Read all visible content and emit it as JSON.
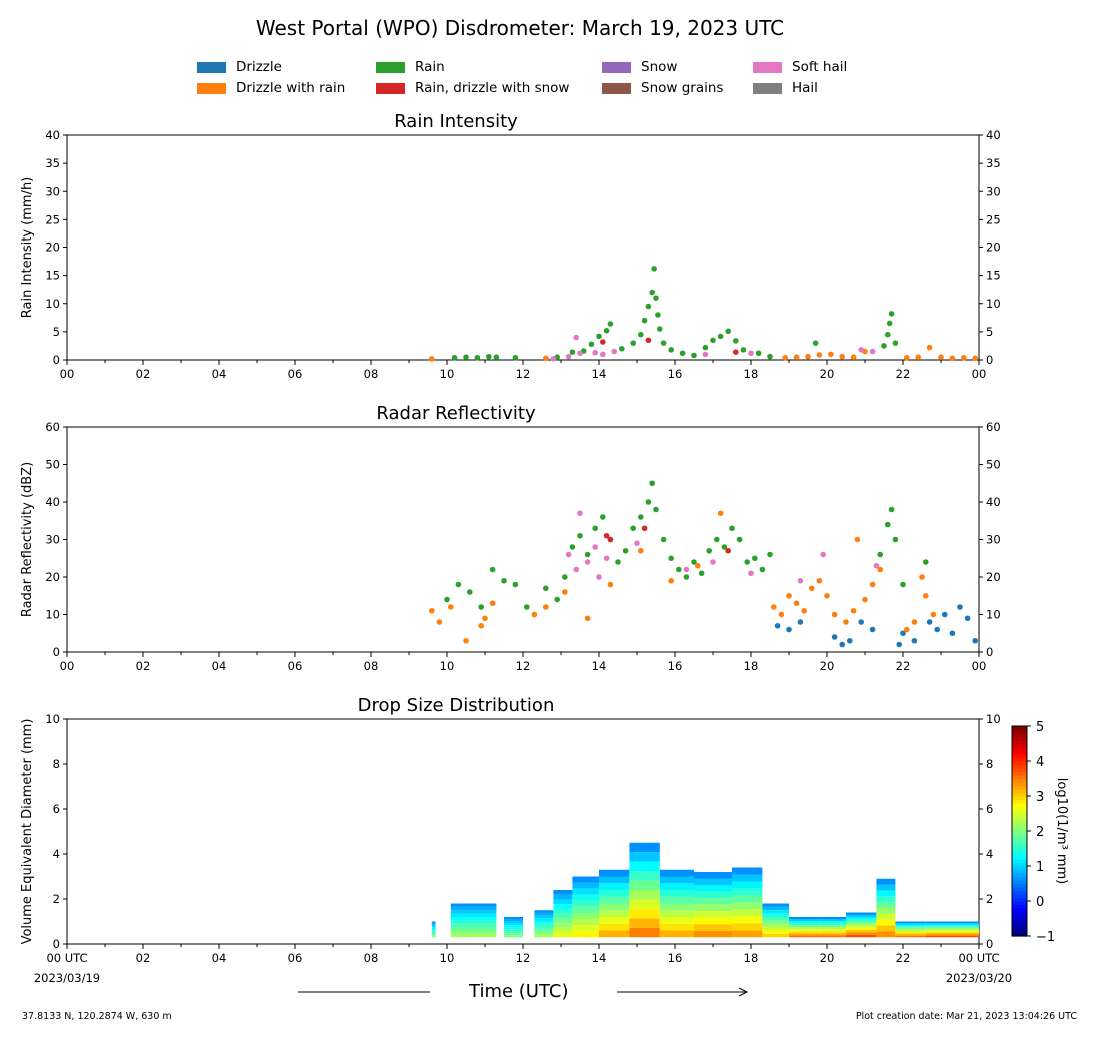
{
  "title": "West Portal (WPO) Disdrometer: March 19, 2023 UTC",
  "legend": [
    {
      "label": "Drizzle",
      "color": "#1f77b4"
    },
    {
      "label": "Drizzle with rain",
      "color": "#ff7f0e"
    },
    {
      "label": "Rain",
      "color": "#2ca02c"
    },
    {
      "label": "Rain, drizzle with snow",
      "color": "#d62728"
    },
    {
      "label": "Snow",
      "color": "#9467bd"
    },
    {
      "label": "Snow grains",
      "color": "#8c564b"
    },
    {
      "label": "Soft hail",
      "color": "#e377c2"
    },
    {
      "label": "Hail",
      "color": "#7f7f7f"
    }
  ],
  "footer": {
    "location": "37.8133 N, 120.2874 W, 630 m",
    "created": "Plot creation date: Mar 21, 2023 13:04:26 UTC",
    "xlabel": "Time (UTC)"
  },
  "chart_data": [
    {
      "type": "scatter",
      "title": "Rain Intensity",
      "ylabel": "Rain Intensity (mm/h)",
      "xlim": [
        0,
        24
      ],
      "ylim": [
        0,
        40
      ],
      "yticks": [
        0,
        5,
        10,
        15,
        20,
        25,
        30,
        35,
        40
      ],
      "xtick_labels": [
        "00",
        "02",
        "04",
        "06",
        "08",
        "10",
        "12",
        "14",
        "16",
        "18",
        "20",
        "22",
        "00"
      ],
      "series": [
        {
          "name": "Drizzle with rain",
          "color": "#ff7f0e",
          "x": [
            9.6,
            12.6,
            18.9,
            19.2,
            19.5,
            19.8,
            20.1,
            20.4,
            20.7,
            21.0,
            22.1,
            22.4,
            22.7,
            23.0,
            23.3,
            23.6,
            23.9
          ],
          "y": [
            0.2,
            0.3,
            0.4,
            0.5,
            0.6,
            0.9,
            1.0,
            0.6,
            0.5,
            1.5,
            0.4,
            0.5,
            2.2,
            0.5,
            0.3,
            0.4,
            0.3
          ]
        },
        {
          "name": "Rain",
          "color": "#2ca02c",
          "x": [
            10.2,
            10.5,
            10.8,
            11.1,
            11.3,
            11.8,
            12.9,
            13.3,
            13.6,
            13.8,
            14.0,
            14.2,
            14.3,
            14.6,
            14.9,
            15.1,
            15.2,
            15.3,
            15.4,
            15.45,
            15.5,
            15.55,
            15.6,
            15.7,
            15.9,
            16.2,
            16.5,
            16.8,
            17.0,
            17.2,
            17.4,
            17.6,
            17.8,
            18.2,
            18.5,
            19.7,
            21.5,
            21.6,
            21.65,
            21.7,
            21.8
          ],
          "y": [
            0.4,
            0.5,
            0.4,
            0.6,
            0.5,
            0.4,
            0.5,
            1.4,
            1.6,
            2.8,
            4.2,
            5.2,
            6.4,
            2.0,
            3.0,
            4.5,
            7.0,
            9.5,
            12.0,
            16.2,
            11.0,
            8.0,
            5.5,
            3.0,
            1.8,
            1.2,
            0.8,
            2.2,
            3.5,
            4.2,
            5.1,
            3.4,
            1.8,
            1.2,
            0.6,
            3.0,
            2.5,
            4.5,
            6.5,
            8.2,
            3.0
          ]
        },
        {
          "name": "Rain, drizzle with snow",
          "color": "#d62728",
          "x": [
            14.1,
            15.3,
            17.6
          ],
          "y": [
            3.2,
            3.5,
            1.4
          ]
        },
        {
          "name": "Soft hail",
          "color": "#e377c2",
          "x": [
            12.8,
            13.2,
            13.4,
            13.5,
            13.9,
            14.1,
            14.4,
            16.8,
            18.0,
            20.9,
            21.2
          ],
          "y": [
            0.2,
            0.6,
            4.0,
            1.2,
            1.3,
            1.0,
            1.5,
            1.0,
            1.2,
            1.8,
            1.5
          ]
        }
      ]
    },
    {
      "type": "scatter",
      "title": "Radar Reflectivity",
      "ylabel": "Radar Reflectivity (dBZ)",
      "xlim": [
        0,
        24
      ],
      "ylim": [
        0,
        60
      ],
      "yticks": [
        0,
        10,
        20,
        30,
        40,
        50,
        60
      ],
      "xtick_labels": [
        "00",
        "02",
        "04",
        "06",
        "08",
        "10",
        "12",
        "14",
        "16",
        "18",
        "20",
        "22",
        "00"
      ],
      "series": [
        {
          "name": "Drizzle",
          "color": "#1f77b4",
          "x": [
            18.7,
            19.0,
            19.3,
            20.2,
            20.4,
            20.6,
            20.9,
            21.2,
            21.9,
            22.0,
            22.3,
            22.7,
            22.9,
            23.1,
            23.3,
            23.5,
            23.7,
            23.9
          ],
          "y": [
            7.0,
            6.0,
            8.0,
            4.0,
            2.0,
            3.0,
            8.0,
            6.0,
            2.0,
            5.0,
            3.0,
            8.0,
            6.0,
            10.0,
            5.0,
            12.0,
            9.0,
            3.0
          ]
        },
        {
          "name": "Drizzle with rain",
          "color": "#ff7f0e",
          "x": [
            9.6,
            9.8,
            10.1,
            10.5,
            10.9,
            11.0,
            11.2,
            12.3,
            12.6,
            13.1,
            13.7,
            14.3,
            15.1,
            15.9,
            16.6,
            17.2,
            18.6,
            18.8,
            19.0,
            19.2,
            19.4,
            19.6,
            19.8,
            20.0,
            20.2,
            20.5,
            20.7,
            20.8,
            21.0,
            21.2,
            21.4,
            22.1,
            22.3,
            22.5,
            22.6,
            22.8
          ],
          "y": [
            11,
            8,
            12,
            3,
            7,
            9,
            13,
            10,
            12,
            16,
            9,
            18,
            27,
            19,
            23,
            37,
            12,
            10,
            15,
            13,
            11,
            17,
            19,
            15,
            10,
            8,
            11,
            30,
            14,
            18,
            22,
            6,
            8,
            20,
            15,
            10
          ]
        },
        {
          "name": "Rain",
          "color": "#2ca02c",
          "x": [
            10.0,
            10.3,
            10.6,
            10.9,
            11.2,
            11.5,
            11.8,
            12.1,
            12.6,
            12.9,
            13.1,
            13.3,
            13.5,
            13.7,
            13.9,
            14.1,
            14.3,
            14.5,
            14.7,
            14.9,
            15.1,
            15.3,
            15.4,
            15.5,
            15.7,
            15.9,
            16.1,
            16.3,
            16.5,
            16.7,
            16.9,
            17.1,
            17.3,
            17.5,
            17.7,
            17.9,
            18.1,
            18.3,
            18.5,
            21.4,
            21.6,
            21.7,
            21.8,
            22.0,
            22.6
          ],
          "y": [
            14,
            18,
            16,
            12,
            22,
            19,
            18,
            12,
            17,
            14,
            20,
            28,
            31,
            26,
            33,
            36,
            30,
            24,
            27,
            33,
            36,
            40,
            45,
            38,
            30,
            25,
            22,
            20,
            24,
            21,
            27,
            30,
            28,
            33,
            30,
            24,
            25,
            22,
            26,
            26,
            34,
            38,
            30,
            18,
            24
          ]
        },
        {
          "name": "Rain, drizzle with snow",
          "color": "#d62728",
          "x": [
            14.2,
            14.3,
            15.2,
            17.4
          ],
          "y": [
            31,
            30,
            33,
            27
          ]
        },
        {
          "name": "Soft hail",
          "color": "#e377c2",
          "x": [
            13.2,
            13.4,
            13.5,
            13.7,
            13.9,
            14.0,
            14.2,
            15.0,
            16.3,
            17.0,
            18.0,
            19.3,
            19.9,
            21.3
          ],
          "y": [
            26,
            22,
            37,
            24,
            28,
            20,
            25,
            29,
            22,
            24,
            21,
            19,
            26,
            23
          ]
        }
      ]
    },
    {
      "type": "heatmap",
      "title": "Drop Size Distribution",
      "ylabel": "Volume Equivalent Diameter (mm)",
      "xlim": [
        0,
        24
      ],
      "ylim": [
        0,
        10
      ],
      "yticks": [
        0,
        2,
        4,
        6,
        8,
        10
      ],
      "xtick_labels": [
        "00 UTC",
        "02",
        "04",
        "06",
        "08",
        "10",
        "12",
        "14",
        "16",
        "18",
        "20",
        "22",
        "00 UTC"
      ],
      "xtick_sublabels": [
        "2023/03/19",
        "2023/03/20"
      ],
      "colorbar": {
        "label": "log10(1/m³ mm)",
        "min": -1,
        "max": 5,
        "ticks": [
          -1,
          0,
          1,
          2,
          3,
          4,
          5
        ]
      },
      "columns": [
        {
          "x0": 9.6,
          "x1": 9.7,
          "top": 1.0,
          "core": 2.0
        },
        {
          "x0": 10.1,
          "x1": 11.3,
          "top": 1.8,
          "core": 2.2
        },
        {
          "x0": 11.5,
          "x1": 12.0,
          "top": 1.2,
          "core": 2.0
        },
        {
          "x0": 12.3,
          "x1": 12.8,
          "top": 1.5,
          "core": 2.2
        },
        {
          "x0": 12.8,
          "x1": 13.3,
          "top": 2.4,
          "core": 2.6
        },
        {
          "x0": 13.3,
          "x1": 14.0,
          "top": 3.0,
          "core": 2.8
        },
        {
          "x0": 14.0,
          "x1": 14.8,
          "top": 3.3,
          "core": 3.2
        },
        {
          "x0": 14.8,
          "x1": 15.6,
          "top": 4.5,
          "core": 3.5
        },
        {
          "x0": 15.6,
          "x1": 16.5,
          "top": 3.3,
          "core": 3.2
        },
        {
          "x0": 16.5,
          "x1": 17.5,
          "top": 3.2,
          "core": 3.4
        },
        {
          "x0": 17.5,
          "x1": 18.3,
          "top": 3.4,
          "core": 3.3
        },
        {
          "x0": 18.3,
          "x1": 19.0,
          "top": 1.8,
          "core": 3.0
        },
        {
          "x0": 19.0,
          "x1": 19.8,
          "top": 1.2,
          "core": 3.6
        },
        {
          "x0": 19.8,
          "x1": 20.5,
          "top": 1.2,
          "core": 3.6
        },
        {
          "x0": 20.5,
          "x1": 21.3,
          "top": 1.4,
          "core": 3.8
        },
        {
          "x0": 21.3,
          "x1": 21.8,
          "top": 2.9,
          "core": 3.4
        },
        {
          "x0": 21.8,
          "x1": 22.6,
          "top": 1.0,
          "core": 3.6
        },
        {
          "x0": 22.6,
          "x1": 24.0,
          "top": 1.0,
          "core": 3.8
        }
      ]
    }
  ]
}
